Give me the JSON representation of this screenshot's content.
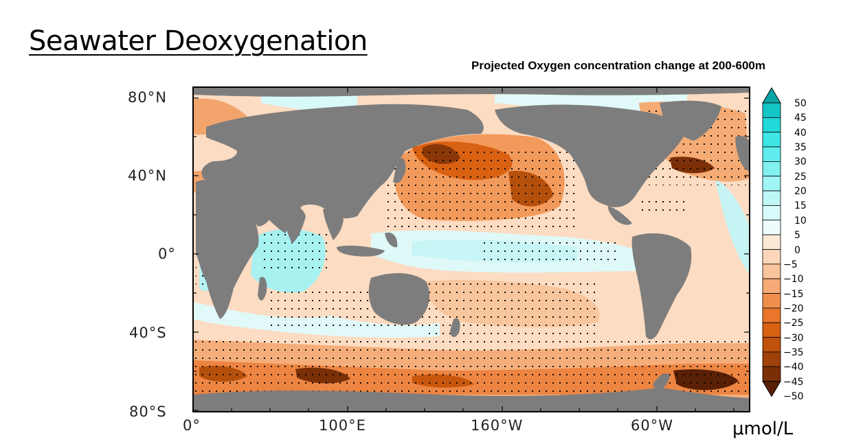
{
  "slide": {
    "title": "Seawater Deoxygenation"
  },
  "map": {
    "title": "Projected Oxygen concentration change at 200-600m",
    "projection": "equirectangular, centered near 200°E (160°W)",
    "lon_range": [
      0,
      360
    ],
    "lat_range": [
      -80,
      90
    ],
    "land_color": "#7d7d7d",
    "lat_labels": [
      "80°N",
      "40°N",
      "0°",
      "40°S",
      "80°S"
    ],
    "lon_labels": [
      "0°",
      "100°E",
      "160°W",
      "60°W"
    ],
    "stippling": "dots mark regions of model agreement"
  },
  "colorbar": {
    "unit": "μmol/L",
    "labels": [
      "50",
      "45",
      "40",
      "35",
      "30",
      "25",
      "20",
      "15",
      "10",
      "5",
      "0",
      "−5",
      "−10",
      "−15",
      "−20",
      "−25",
      "−30",
      "−35",
      "−40",
      "−45",
      "−50"
    ],
    "colors": [
      "#0aa5a5",
      "#12c6c6",
      "#22d8d8",
      "#3ee6e6",
      "#60ecec",
      "#80f0f0",
      "#a0f4f4",
      "#bff7f7",
      "#d8fafa",
      "#eefcfc",
      "#fde8d6",
      "#fcd6b8",
      "#fac49c",
      "#f6ab76",
      "#f08f4c",
      "#e9762a",
      "#d96112",
      "#bf510c",
      "#9f410a",
      "#7a2f07",
      "#5a2005"
    ]
  }
}
